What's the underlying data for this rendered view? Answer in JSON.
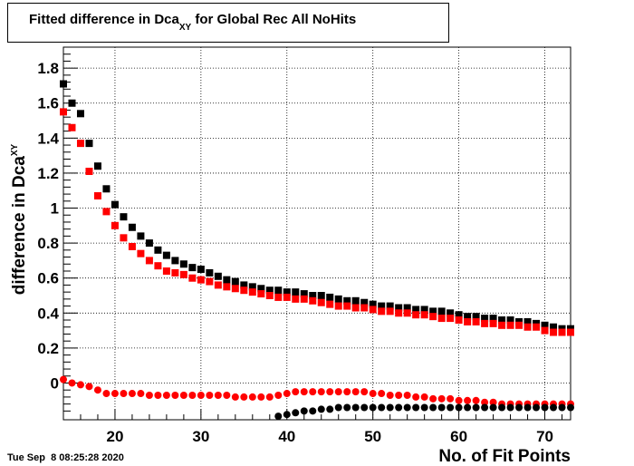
{
  "chart_data": {
    "type": "scatter",
    "title_main": "Fitted difference in Dca",
    "title_sub": "XY",
    "title_rest": " for Global Rec All NoHits",
    "xlabel": "No. of Fit Points",
    "ylabel_main": "difference in Dca",
    "ylabel_sub": "XY",
    "timestamp": "Tue Sep  8 08:25:28 2020",
    "xlim": [
      14,
      73
    ],
    "ylim": [
      -0.21,
      1.92
    ],
    "xticks": [
      20,
      30,
      40,
      50,
      60,
      70
    ],
    "xtick_labels": [
      "20",
      "30",
      "40",
      "50",
      "60",
      "70"
    ],
    "yticks": [
      0,
      0.2,
      0.4,
      0.6,
      0.8,
      1,
      1.2,
      1.4,
      1.6,
      1.8
    ],
    "ytick_labels": [
      "0",
      "0.2",
      "0.4",
      "0.6",
      "0.8",
      "1",
      "1.2",
      "1.4",
      "1.6",
      "1.8"
    ],
    "grid": true,
    "series": [
      {
        "color": "#000000",
        "marker": "square",
        "x": [
          14,
          15,
          16,
          17,
          18,
          19,
          20,
          21,
          22,
          23,
          24,
          25,
          26,
          27,
          28,
          29,
          30,
          31,
          32,
          33,
          34,
          35,
          36,
          37,
          38,
          39,
          40,
          41,
          42,
          43,
          44,
          45,
          46,
          47,
          48,
          49,
          50,
          51,
          52,
          53,
          54,
          55,
          56,
          57,
          58,
          59,
          60,
          61,
          62,
          63,
          64,
          65,
          66,
          67,
          68,
          69,
          70,
          71,
          72,
          73
        ],
        "y": [
          1.71,
          1.6,
          1.54,
          1.37,
          1.24,
          1.11,
          1.02,
          0.95,
          0.89,
          0.84,
          0.8,
          0.76,
          0.73,
          0.7,
          0.68,
          0.66,
          0.65,
          0.63,
          0.61,
          0.59,
          0.58,
          0.56,
          0.55,
          0.54,
          0.53,
          0.53,
          0.52,
          0.52,
          0.51,
          0.5,
          0.5,
          0.49,
          0.48,
          0.47,
          0.47,
          0.46,
          0.45,
          0.44,
          0.44,
          0.43,
          0.43,
          0.42,
          0.42,
          0.41,
          0.41,
          0.4,
          0.39,
          0.38,
          0.38,
          0.37,
          0.37,
          0.36,
          0.36,
          0.35,
          0.35,
          0.34,
          0.33,
          0.32,
          0.31,
          0.31
        ]
      },
      {
        "color": "#ff0000",
        "marker": "square",
        "x": [
          14,
          15,
          16,
          17,
          18,
          19,
          20,
          21,
          22,
          23,
          24,
          25,
          26,
          27,
          28,
          29,
          30,
          31,
          32,
          33,
          34,
          35,
          36,
          37,
          38,
          39,
          40,
          41,
          42,
          43,
          44,
          45,
          46,
          47,
          48,
          49,
          50,
          51,
          52,
          53,
          54,
          55,
          56,
          57,
          58,
          59,
          60,
          61,
          62,
          63,
          64,
          65,
          66,
          67,
          68,
          69,
          70,
          71,
          72,
          73
        ],
        "y": [
          1.55,
          1.46,
          1.37,
          1.21,
          1.07,
          0.98,
          0.9,
          0.83,
          0.78,
          0.74,
          0.7,
          0.67,
          0.64,
          0.63,
          0.62,
          0.6,
          0.59,
          0.58,
          0.56,
          0.55,
          0.54,
          0.53,
          0.52,
          0.51,
          0.5,
          0.49,
          0.49,
          0.48,
          0.48,
          0.47,
          0.46,
          0.45,
          0.44,
          0.44,
          0.43,
          0.43,
          0.42,
          0.41,
          0.41,
          0.4,
          0.4,
          0.39,
          0.39,
          0.38,
          0.37,
          0.37,
          0.36,
          0.35,
          0.35,
          0.34,
          0.34,
          0.33,
          0.33,
          0.33,
          0.32,
          0.32,
          0.3,
          0.29,
          0.29,
          0.29
        ]
      },
      {
        "color": "#ff0000",
        "marker": "circle",
        "x": [
          14,
          15,
          16,
          17,
          18,
          19,
          20,
          21,
          22,
          23,
          24,
          25,
          26,
          27,
          28,
          29,
          30,
          31,
          32,
          33,
          34,
          35,
          36,
          37,
          38,
          39,
          40,
          41,
          42,
          43,
          44,
          45,
          46,
          47,
          48,
          49,
          50,
          51,
          52,
          53,
          54,
          55,
          56,
          57,
          58,
          59,
          60,
          61,
          62,
          63,
          64,
          65,
          66,
          67,
          68,
          69,
          70,
          71,
          72,
          73
        ],
        "y": [
          0.02,
          0.0,
          -0.01,
          -0.02,
          -0.04,
          -0.06,
          -0.06,
          -0.06,
          -0.06,
          -0.06,
          -0.07,
          -0.07,
          -0.07,
          -0.07,
          -0.07,
          -0.07,
          -0.07,
          -0.07,
          -0.07,
          -0.07,
          -0.08,
          -0.08,
          -0.08,
          -0.08,
          -0.08,
          -0.07,
          -0.06,
          -0.05,
          -0.05,
          -0.05,
          -0.05,
          -0.05,
          -0.05,
          -0.05,
          -0.05,
          -0.05,
          -0.06,
          -0.06,
          -0.07,
          -0.07,
          -0.07,
          -0.08,
          -0.08,
          -0.09,
          -0.09,
          -0.09,
          -0.1,
          -0.1,
          -0.1,
          -0.11,
          -0.11,
          -0.12,
          -0.12,
          -0.12,
          -0.12,
          -0.12,
          -0.12,
          -0.12,
          -0.12,
          -0.12
        ]
      },
      {
        "color": "#000000",
        "marker": "circle",
        "x": [
          39,
          40,
          41,
          42,
          43,
          44,
          45,
          46,
          47,
          48,
          49,
          50,
          51,
          52,
          53,
          54,
          55,
          56,
          57,
          58,
          59,
          60,
          61,
          62,
          63,
          64,
          65,
          66,
          67,
          68,
          69,
          70,
          71,
          72,
          73
        ],
        "y": [
          -0.19,
          -0.18,
          -0.17,
          -0.16,
          -0.16,
          -0.15,
          -0.15,
          -0.14,
          -0.14,
          -0.14,
          -0.14,
          -0.14,
          -0.14,
          -0.14,
          -0.14,
          -0.14,
          -0.14,
          -0.14,
          -0.14,
          -0.14,
          -0.14,
          -0.14,
          -0.14,
          -0.14,
          -0.14,
          -0.14,
          -0.14,
          -0.14,
          -0.14,
          -0.14,
          -0.14,
          -0.14,
          -0.14,
          -0.14,
          -0.14
        ]
      }
    ]
  }
}
